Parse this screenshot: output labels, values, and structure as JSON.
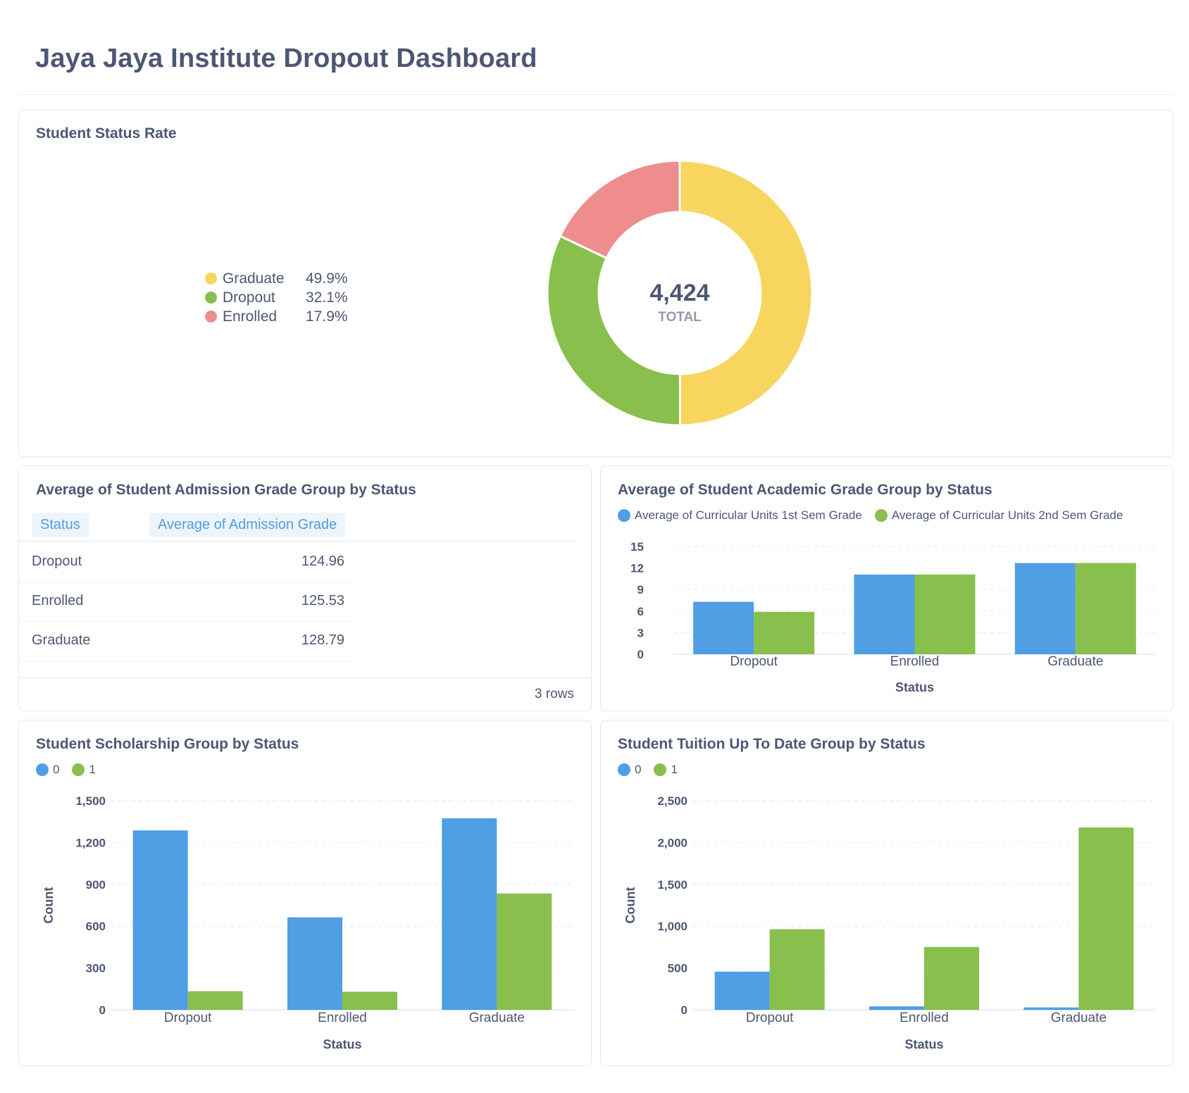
{
  "dashboard": {
    "title": "Jaya Jaya Institute Dropout Dashboard"
  },
  "colors": {
    "blue": "#509ee3",
    "green": "#88bf4d",
    "yellow": "#f7d55f",
    "red": "#ef8c8c",
    "text": "#4c5773"
  },
  "chart_data": [
    {
      "id": "student-status-rate",
      "type": "pie",
      "title": "Student Status Rate",
      "total_value": "4,424",
      "total_label": "TOTAL",
      "slices": [
        {
          "label": "Graduate",
          "value": 49.9,
          "pct_label": "49.9%",
          "color": "#f7d55f"
        },
        {
          "label": "Dropout",
          "value": 32.1,
          "pct_label": "32.1%",
          "color": "#88bf4d"
        },
        {
          "label": "Enrolled",
          "value": 17.9,
          "pct_label": "17.9%",
          "color": "#ef8c8c"
        }
      ]
    },
    {
      "id": "admission-grade",
      "type": "table",
      "title": "Average of Student Admission Grade Group by Status",
      "columns": [
        "Status",
        "Average of Admission Grade"
      ],
      "rows": [
        [
          "Dropout",
          "124.96"
        ],
        [
          "Enrolled",
          "125.53"
        ],
        [
          "Graduate",
          "128.79"
        ]
      ],
      "row_count": "3 rows"
    },
    {
      "id": "academic-grade",
      "type": "bar",
      "title": "Average of Student Academic Grade Group by Status",
      "categories": [
        "Dropout",
        "Enrolled",
        "Graduate"
      ],
      "series": [
        {
          "name": "Average of Curricular Units 1st Sem Grade",
          "color": "#509ee3",
          "values": [
            7.3,
            11.1,
            12.7
          ]
        },
        {
          "name": "Average of Curricular Units 2nd Sem Grade",
          "color": "#88bf4d",
          "values": [
            5.9,
            11.1,
            12.7
          ]
        }
      ],
      "xlabel": "Status",
      "ylabel": "",
      "ylim": [
        0,
        15
      ],
      "yticks": [
        0,
        3,
        6,
        9,
        12,
        15
      ],
      "ytick_labels": [
        "0",
        "3",
        "6",
        "9",
        "12",
        "15"
      ],
      "grid": true
    },
    {
      "id": "scholarship",
      "type": "bar",
      "title": "Student Scholarship Group by Status",
      "categories": [
        "Dropout",
        "Enrolled",
        "Graduate"
      ],
      "series": [
        {
          "name": "0",
          "color": "#509ee3",
          "values": [
            1287,
            664,
            1374
          ]
        },
        {
          "name": "1",
          "color": "#88bf4d",
          "values": [
            134,
            130,
            835
          ]
        }
      ],
      "xlabel": "Status",
      "ylabel": "Count",
      "ylim": [
        0,
        1500
      ],
      "yticks": [
        0,
        300,
        600,
        900,
        1200,
        1500
      ],
      "ytick_labels": [
        "0",
        "300",
        "600",
        "900",
        "1,200",
        "1,500"
      ],
      "grid": true
    },
    {
      "id": "tuition",
      "type": "bar",
      "title": "Student Tuition Up To Date Group by Status",
      "categories": [
        "Dropout",
        "Enrolled",
        "Graduate"
      ],
      "series": [
        {
          "name": "0",
          "color": "#509ee3",
          "values": [
            457,
            42,
            29
          ]
        },
        {
          "name": "1",
          "color": "#88bf4d",
          "values": [
            964,
            752,
            2180
          ]
        }
      ],
      "xlabel": "Status",
      "ylabel": "Count",
      "ylim": [
        0,
        2500
      ],
      "yticks": [
        0,
        500,
        1000,
        1500,
        2000,
        2500
      ],
      "ytick_labels": [
        "0",
        "500",
        "1,000",
        "1,500",
        "2,000",
        "2,500"
      ],
      "grid": true
    }
  ]
}
